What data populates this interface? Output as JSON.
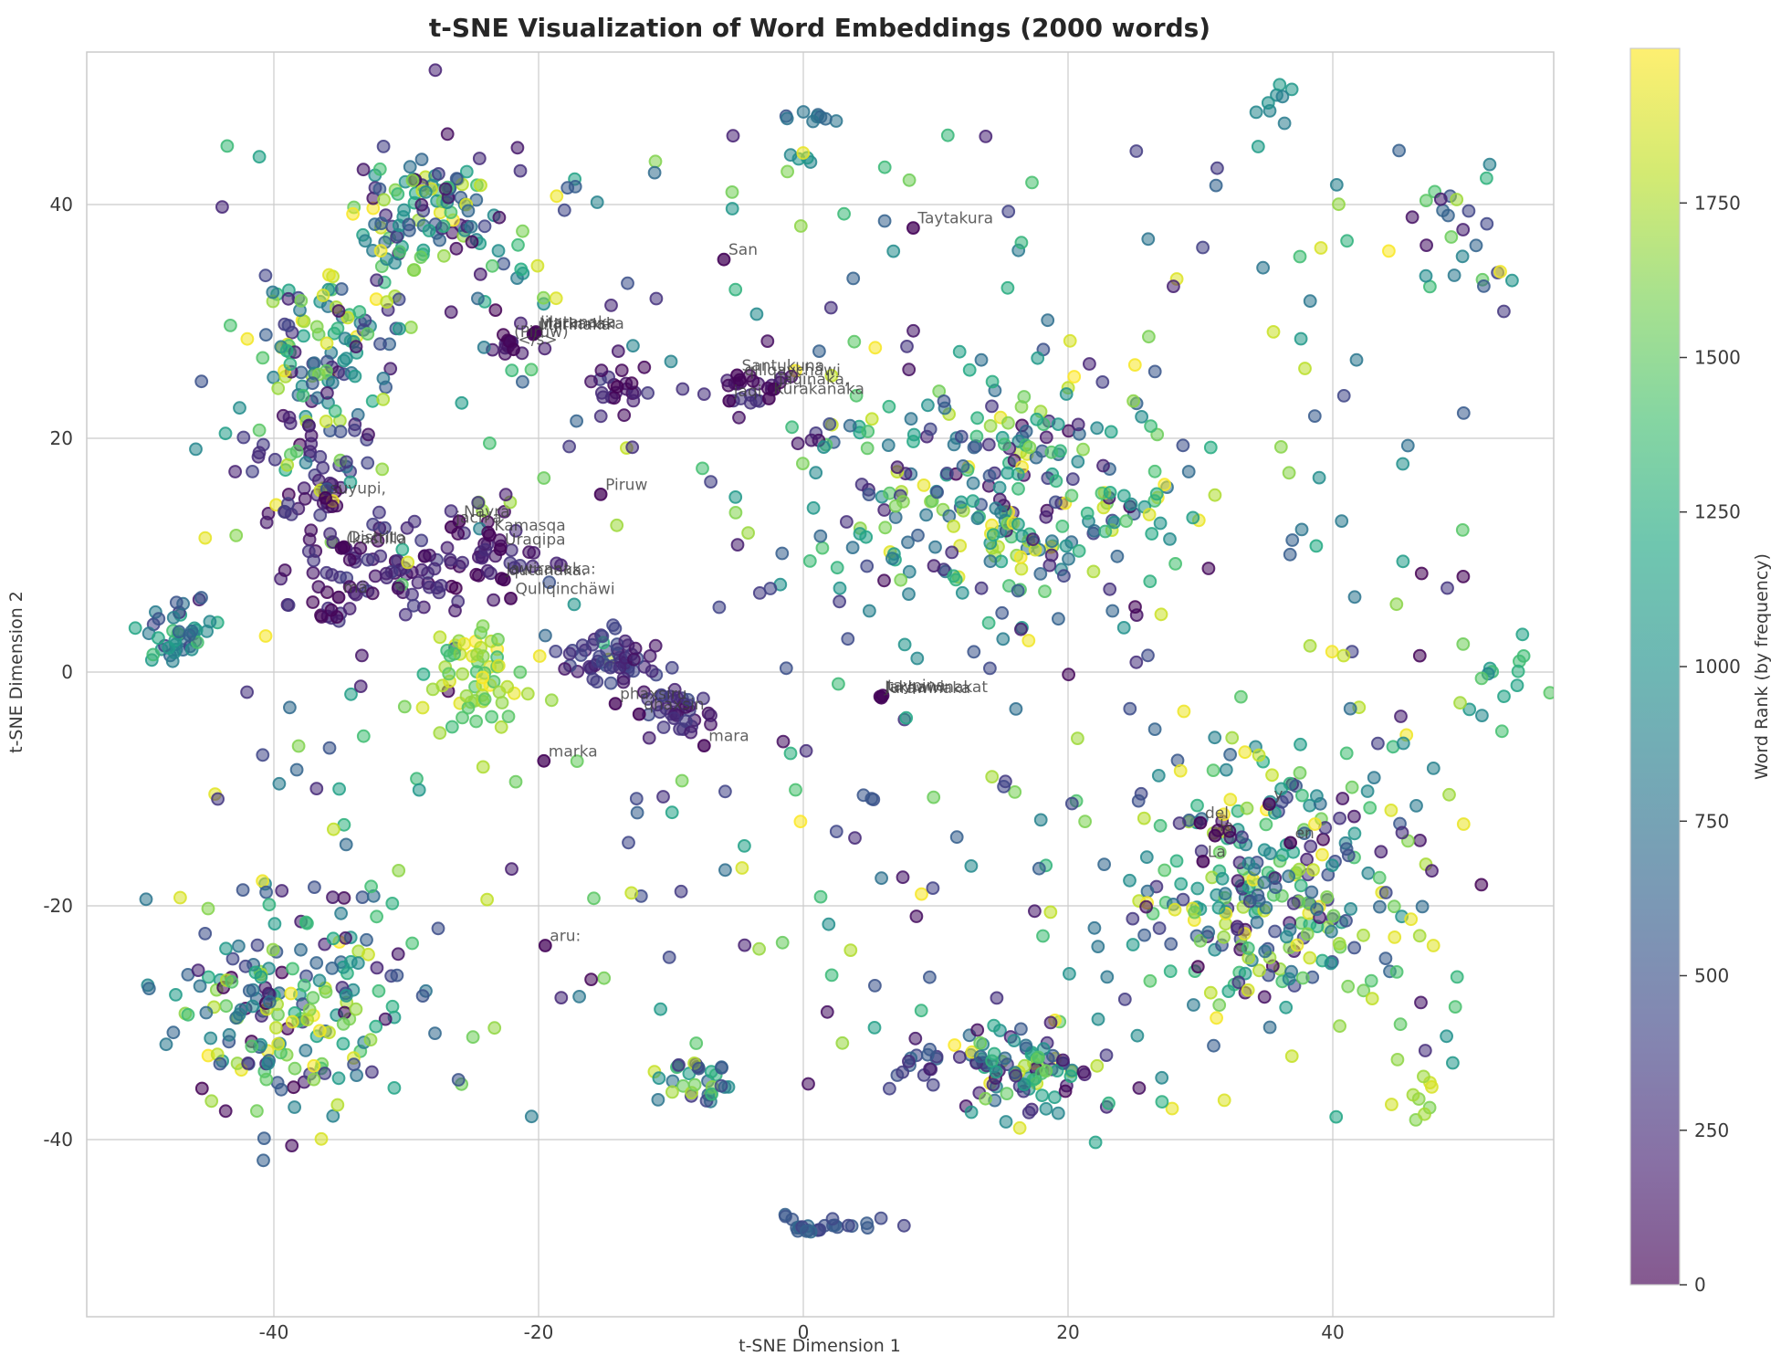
{
  "title": "t-SNE Visualization of Word Embeddings (2000 words)",
  "axes": {
    "xlabel": "t-SNE Dimension 1",
    "ylabel": "t-SNE Dimension 2",
    "x_ticks": [
      -40,
      -20,
      0,
      20,
      40
    ],
    "y_ticks": [
      -40,
      -20,
      0,
      20,
      40
    ],
    "xlim": [
      -54.1,
      56.7
    ],
    "ylim": [
      -55.2,
      53.0
    ],
    "grid": true
  },
  "colorbar": {
    "label": "Word Rank (by frequency)",
    "ticks": [
      0,
      250,
      500,
      750,
      1000,
      1250,
      1500,
      1750
    ],
    "vmin": 0,
    "vmax": 2000
  },
  "colormap": {
    "name": "viridis",
    "stops": [
      [
        0.0,
        "#440154"
      ],
      [
        0.1,
        "#482475"
      ],
      [
        0.2,
        "#414487"
      ],
      [
        0.3,
        "#355f8d"
      ],
      [
        0.4,
        "#2a788e"
      ],
      [
        0.5,
        "#21918c"
      ],
      [
        0.6,
        "#22a884"
      ],
      [
        0.7,
        "#44bf70"
      ],
      [
        0.8,
        "#7ad151"
      ],
      [
        0.9,
        "#bddf26"
      ],
      [
        1.0,
        "#fde725"
      ]
    ],
    "point_alpha": 0.55
  },
  "chart_data": {
    "type": "scatter",
    "n_points": 2000,
    "seed": 42,
    "point_radius": 6.4,
    "clusters": [
      {
        "cx": -28,
        "cy": 39,
        "sx": 3.2,
        "sy": 3.2,
        "n": 120,
        "rank": [
          0,
          2000
        ]
      },
      {
        "cx": -36,
        "cy": 28,
        "sx": 3.0,
        "sy": 3.0,
        "n": 90,
        "rank": [
          0,
          2000
        ]
      },
      {
        "cx": -37,
        "cy": 18,
        "sx": 2.6,
        "sy": 2.6,
        "n": 35,
        "rank": [
          0,
          400
        ]
      },
      {
        "cx": -37,
        "cy": 18,
        "sx": 2.6,
        "sy": 2.6,
        "n": 30,
        "rank": [
          0,
          2000
        ]
      },
      {
        "cx": -32.5,
        "cy": 8.5,
        "sx": 3.0,
        "sy": 2.4,
        "n": 70,
        "rank": [
          0,
          380
        ]
      },
      {
        "cx": -24.5,
        "cy": -0.5,
        "sx": 1.6,
        "sy": 2.6,
        "n": 55,
        "rank": [
          1350,
          2000
        ]
      },
      {
        "cx": -14.8,
        "cy": 1.0,
        "sx": 1.7,
        "sy": 1.3,
        "n": 55,
        "rank": [
          80,
          450
        ]
      },
      {
        "cx": -9.8,
        "cy": -3.0,
        "sx": 1.4,
        "sy": 1.2,
        "n": 35,
        "rank": [
          80,
          450
        ]
      },
      {
        "cx": 15,
        "cy": 16,
        "sx": 7.0,
        "sy": 6.0,
        "n": 270,
        "rank": [
          0,
          2000
        ]
      },
      {
        "cx": 35,
        "cy": -19,
        "sx": 5.5,
        "sy": 5.5,
        "n": 250,
        "rank": [
          0,
          2000
        ]
      },
      {
        "cx": -39,
        "cy": -28,
        "sx": 4.8,
        "sy": 4.8,
        "n": 180,
        "rank": [
          0,
          2000
        ]
      },
      {
        "cx": 16.5,
        "cy": -33.5,
        "sx": 2.6,
        "sy": 2.4,
        "n": 90,
        "rank": [
          0,
          2000
        ]
      },
      {
        "cx": 1.5,
        "cy": -47.3,
        "sx": 2.2,
        "sy": 0.5,
        "n": 26,
        "rank": [
          350,
          700
        ]
      },
      {
        "cx": -47.5,
        "cy": 3.0,
        "sx": 1.4,
        "sy": 1.3,
        "n": 40,
        "rank": [
          300,
          1500
        ]
      },
      {
        "cx": -8,
        "cy": -34.8,
        "sx": 1.4,
        "sy": 1.0,
        "n": 30,
        "rank": [
          200,
          1800
        ]
      },
      {
        "cx": 0.9,
        "cy": 47.6,
        "sx": 1.0,
        "sy": 0.7,
        "n": 9,
        "rank": [
          500,
          800
        ]
      },
      {
        "cx": 0,
        "cy": 44,
        "sx": 0.6,
        "sy": 0.4,
        "n": 4,
        "rank": [
          900,
          1100
        ]
      },
      {
        "cx": -14,
        "cy": 24,
        "sx": 0.9,
        "sy": 1.6,
        "n": 24,
        "rank": [
          0,
          400
        ]
      },
      {
        "cx": -21.8,
        "cy": 28,
        "sx": 0.8,
        "sy": 0.7,
        "n": 12,
        "rank": [
          0,
          250
        ]
      },
      {
        "cx": -4,
        "cy": 24,
        "sx": 1.6,
        "sy": 0.9,
        "n": 22,
        "rank": [
          0,
          300
        ]
      },
      {
        "cx": -36,
        "cy": 14.8,
        "sx": 1.2,
        "sy": 0.5,
        "n": 10,
        "rank": [
          0,
          250
        ]
      },
      {
        "cx": -35.3,
        "cy": 5.5,
        "sx": 0.9,
        "sy": 0.9,
        "n": 12,
        "rank": [
          0,
          300
        ]
      },
      {
        "cx": -24,
        "cy": 10,
        "sx": 2.0,
        "sy": 1.8,
        "n": 40,
        "rank": [
          0,
          350
        ]
      },
      {
        "cx": 50,
        "cy": 37,
        "sx": 2.5,
        "sy": 3.5,
        "n": 20,
        "rank": [
          0,
          2000
        ]
      },
      {
        "cx": 35.5,
        "cy": 48.5,
        "sx": 1.2,
        "sy": 0.8,
        "n": 8,
        "rank": [
          800,
          1100
        ]
      },
      {
        "cx": 53,
        "cy": -1,
        "sx": 1.6,
        "sy": 2.5,
        "n": 15,
        "rank": [
          900,
          1600
        ]
      },
      {
        "cx": 46,
        "cy": -36,
        "sx": 1.0,
        "sy": 1.0,
        "n": 10,
        "rank": [
          1500,
          2000
        ]
      },
      {
        "cx": 8.5,
        "cy": -33.3,
        "sx": 1.2,
        "sy": 0.9,
        "n": 16,
        "rank": [
          100,
          700
        ]
      }
    ],
    "background": {
      "n": 422,
      "x": [
        -46,
        50
      ],
      "y": [
        -40,
        46
      ],
      "rank": [
        0,
        2000
      ]
    },
    "annotations": [
      {
        "text": "Taytakura",
        "x": 8.3,
        "y": 38.0
      },
      {
        "text": "San",
        "x": -6.0,
        "y": 35.3
      },
      {
        "text": "Markanaka",
        "x": -20.3,
        "y": 29.0
      },
      {
        "text": "jilatanaka",
        "x": -20.2,
        "y": 29.1
      },
      {
        "text": "utjirinaka",
        "x": -20.4,
        "y": 28.9
      },
      {
        "text": "(Piruw)",
        "x": -22.2,
        "y": 28.3
      },
      {
        "text": "</s>",
        "x": -21.9,
        "y": 27.6
      },
      {
        "text": "Santukuna",
        "x": -5.0,
        "y": 25.4
      },
      {
        "text": "qillqaychäwi",
        "x": -4.8,
        "y": 25.0
      },
      {
        "text": "jaqi",
        "x": -5.6,
        "y": 23.2
      },
      {
        "text": "jaqinaka,",
        "x": -2.2,
        "y": 24.2
      },
      {
        "text": "Kurakanaka",
        "x": -2.6,
        "y": 23.4
      },
      {
        "text": "suyupi,",
        "x": -36.1,
        "y": 14.9
      },
      {
        "text": "(kastilla",
        "x": -34.9,
        "y": 10.6
      },
      {
        "text": "Distrito",
        "x": -34.7,
        "y": 10.7
      },
      {
        "text": "mä",
        "x": -35.1,
        "y": 6.4
      },
      {
        "text": "Nayra",
        "x": -26.0,
        "y": 12.9
      },
      {
        "text": "jach'a",
        "x": -26.6,
        "y": 12.4
      },
      {
        "text": "Kamasqa",
        "x": -23.7,
        "y": 11.7
      },
      {
        "text": "Uraqipa",
        "x": -22.9,
        "y": 10.5
      },
      {
        "text": "Jawiranaka:",
        "x": -22.8,
        "y": 8.0
      },
      {
        "text": "qutanaka.",
        "x": -22.6,
        "y": 7.9
      },
      {
        "text": "Qullqinchäwi",
        "x": -22.1,
        "y": 6.3
      },
      {
        "text": "Piruw",
        "x": -15.3,
        "y": 15.2
      },
      {
        "text": "Jakhawinakat",
        "x": 5.8,
        "y": -2.1
      },
      {
        "text": "lurawinaka",
        "x": 5.9,
        "y": -2.2
      },
      {
        "text": "taypina",
        "x": 6.0,
        "y": -2.0
      },
      {
        "text": "phaxsiru",
        "x": -14.2,
        "y": -2.7
      },
      {
        "text": "qhaxsin",
        "x": -12.4,
        "y": -3.6
      },
      {
        "text": "mara",
        "x": -7.5,
        "y": -6.3
      },
      {
        "text": "marka",
        "x": -19.6,
        "y": -7.6
      },
      {
        "text": "aru:",
        "x": -19.5,
        "y": -23.4
      },
      {
        "text": "y",
        "x": 35.2,
        "y": -11.3
      },
      {
        "text": "del",
        "x": 30.0,
        "y": -12.9
      },
      {
        "text": "la",
        "x": 31.1,
        "y": -14.0
      },
      {
        "text": "en",
        "x": 36.8,
        "y": -14.6
      },
      {
        "text": "La",
        "x": 30.2,
        "y": -16.2
      }
    ]
  }
}
